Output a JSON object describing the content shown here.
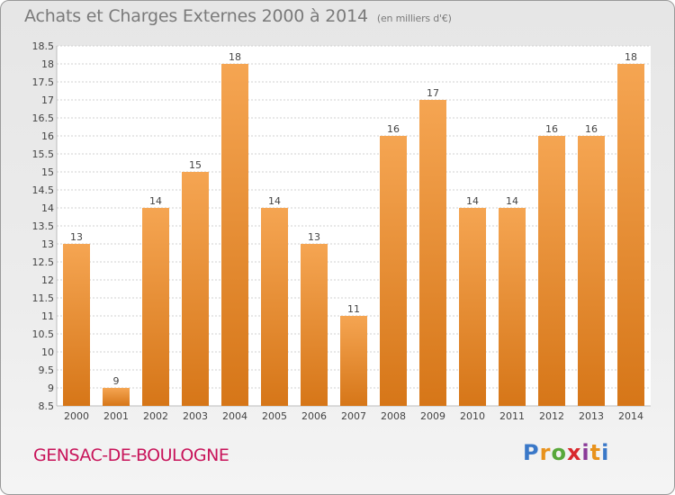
{
  "header": {
    "title": "Achats et Charges Externes 2000 à 2014",
    "unit": "(en milliers d'€)"
  },
  "footer": {
    "commune": "GENSAC-DE-BOULOGNE",
    "logo": "Proxiti",
    "logo_colors": [
      "#3a78c8",
      "#e8921c",
      "#58a83a",
      "#d8282c",
      "#8a3a98",
      "#e8921c",
      "#3a78c8"
    ]
  },
  "chart_data": {
    "type": "bar",
    "categories": [
      "2000",
      "2001",
      "2002",
      "2003",
      "2004",
      "2005",
      "2006",
      "2007",
      "2008",
      "2009",
      "2010",
      "2011",
      "2012",
      "2013",
      "2014"
    ],
    "values": [
      13,
      9,
      14,
      15,
      18,
      14,
      13,
      11,
      16,
      17,
      14,
      14,
      16,
      16,
      18
    ],
    "data_labels": [
      "13",
      "9",
      "14",
      "15",
      "18",
      "14",
      "13",
      "11",
      "16",
      "17",
      "14",
      "14",
      "16",
      "16",
      "18"
    ],
    "title": "Achats et Charges Externes 2000 à 2014",
    "xlabel": "",
    "ylabel": "",
    "ylim": [
      8.5,
      18.5
    ],
    "yticks": [
      "8.5",
      "9",
      "9.5",
      "10",
      "10.5",
      "11",
      "11.5",
      "12",
      "12.5",
      "13",
      "13.5",
      "14",
      "14.5",
      "15",
      "15.5",
      "16",
      "16.5",
      "17",
      "17.5",
      "18",
      "18.5"
    ],
    "grid": true,
    "bar_color_top": "#f5a552",
    "bar_color_bottom": "#d67618"
  }
}
